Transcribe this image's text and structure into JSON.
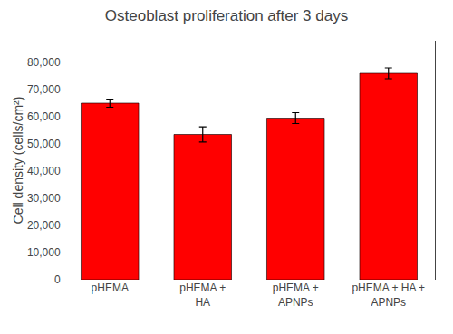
{
  "chart_data": {
    "type": "bar",
    "title": "Osteoblast proliferation after 3 days",
    "ylabel": "Cell density (cells/cm²)",
    "categories": [
      "pHEMA",
      "pHEMA +\nHA",
      "pHEMA +\nAPNPs",
      "pHEMA + HA +\nAPNPs"
    ],
    "values": [
      65000,
      53500,
      59500,
      76000
    ],
    "errors": [
      1500,
      2800,
      2000,
      2000
    ],
    "color": "#FF0000",
    "ylim": [
      0,
      88000
    ],
    "yticks": [
      0,
      {
        "value": 10000,
        "label": "10,000"
      },
      {
        "value": 20000,
        "label": "20,000"
      },
      {
        "value": 30000,
        "label": "30,000"
      },
      {
        "value": 40000,
        "label": "40,000"
      },
      {
        "value": 50000,
        "label": "50,000"
      },
      {
        "value": 60000,
        "label": "60,000"
      },
      {
        "value": 70000,
        "label": "70,000"
      },
      {
        "value": 80000,
        "label": "80,000"
      }
    ],
    "grid": false
  }
}
